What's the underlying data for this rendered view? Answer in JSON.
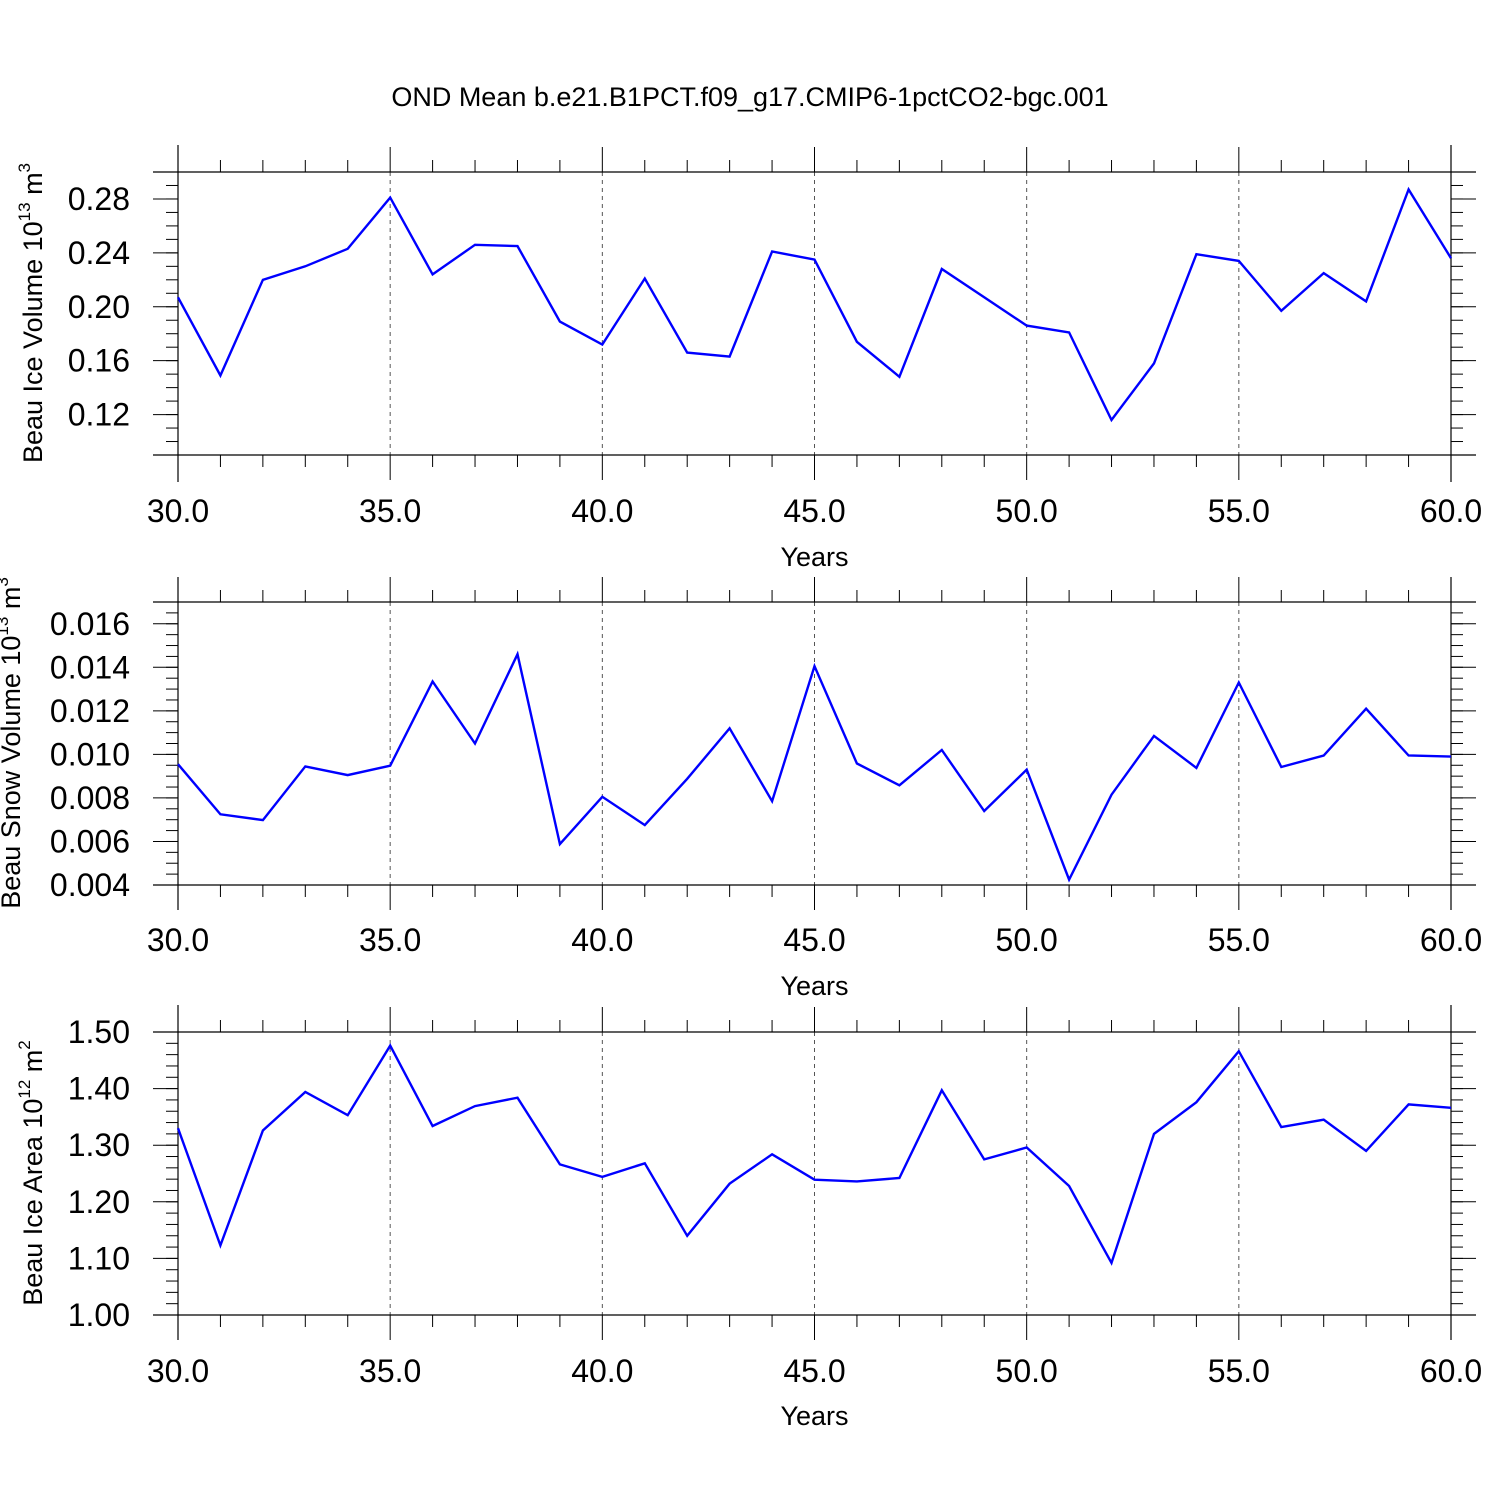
{
  "title": "OND Mean b.e21.B1PCT.f09_g17.CMIP6-1pctCO2-bgc.001",
  "chart_data": [
    {
      "type": "line",
      "ylabel": "Beau Ice Volume 10",
      "ylabel_exp": "13",
      "ylabel_unit": " m",
      "ylabel_unit_exp": "3",
      "xlabel": "Years",
      "xlim": [
        30,
        60
      ],
      "ylim": [
        0.09,
        0.3
      ],
      "xticks": [
        30,
        35,
        40,
        45,
        50,
        55,
        60
      ],
      "xtick_labels": [
        "30.0",
        "35.0",
        "40.0",
        "45.0",
        "50.0",
        "55.0",
        "60.0"
      ],
      "yticks": [
        0.12,
        0.16,
        0.2,
        0.24,
        0.28
      ],
      "ytick_labels": [
        "0.12",
        "0.16",
        "0.20",
        "0.24",
        "0.28"
      ],
      "yminor_step": 0.01,
      "grid": "vertical dashed",
      "line_color": "#0000ff",
      "x": [
        30,
        31,
        32,
        33,
        34,
        35,
        36,
        37,
        38,
        39,
        40,
        41,
        42,
        43,
        44,
        45,
        46,
        47,
        48,
        49,
        50,
        51,
        52,
        53,
        54,
        55,
        56,
        57,
        58,
        59,
        60
      ],
      "values": [
        0.207,
        0.149,
        0.22,
        0.23,
        0.243,
        0.281,
        0.224,
        0.246,
        0.245,
        0.189,
        0.172,
        0.221,
        0.166,
        0.163,
        0.241,
        0.235,
        0.174,
        0.148,
        0.228,
        0.207,
        0.186,
        0.181,
        0.116,
        0.158,
        0.239,
        0.234,
        0.197,
        0.225,
        0.204,
        0.287,
        0.236
      ]
    },
    {
      "type": "line",
      "ylabel": "Beau Snow Volume 10",
      "ylabel_exp": "13",
      "ylabel_unit": " m",
      "ylabel_unit_exp": "3",
      "xlabel": "Years",
      "xlim": [
        30,
        60
      ],
      "ylim": [
        0.004,
        0.017
      ],
      "xticks": [
        30,
        35,
        40,
        45,
        50,
        55,
        60
      ],
      "xtick_labels": [
        "30.0",
        "35.0",
        "40.0",
        "45.0",
        "50.0",
        "55.0",
        "60.0"
      ],
      "yticks": [
        0.004,
        0.006,
        0.008,
        0.01,
        0.012,
        0.014,
        0.016
      ],
      "ytick_labels": [
        "0.004",
        "0.006",
        "0.008",
        "0.010",
        "0.012",
        "0.014",
        "0.016"
      ],
      "yminor_step": 0.0005,
      "grid": "vertical dashed",
      "line_color": "#0000ff",
      "x": [
        30,
        31,
        32,
        33,
        34,
        35,
        36,
        37,
        38,
        39,
        40,
        41,
        42,
        43,
        44,
        45,
        46,
        47,
        48,
        49,
        50,
        51,
        52,
        53,
        54,
        55,
        56,
        57,
        58,
        59,
        60
      ],
      "values": [
        0.00955,
        0.00725,
        0.00698,
        0.00945,
        0.00905,
        0.00948,
        0.01335,
        0.0105,
        0.0146,
        0.00588,
        0.00805,
        0.00675,
        0.00888,
        0.0112,
        0.00785,
        0.01405,
        0.00958,
        0.00858,
        0.0102,
        0.0074,
        0.0093,
        0.00425,
        0.00815,
        0.01085,
        0.00938,
        0.0133,
        0.00942,
        0.00995,
        0.0121,
        0.00995,
        0.0099
      ]
    },
    {
      "type": "line",
      "ylabel": "Beau Ice Area 10",
      "ylabel_exp": "12",
      "ylabel_unit": " m",
      "ylabel_unit_exp": "2",
      "xlabel": "Years",
      "xlim": [
        30,
        60
      ],
      "ylim": [
        1.0,
        1.5
      ],
      "xticks": [
        30,
        35,
        40,
        45,
        50,
        55,
        60
      ],
      "xtick_labels": [
        "30.0",
        "35.0",
        "40.0",
        "45.0",
        "50.0",
        "55.0",
        "60.0"
      ],
      "yticks": [
        1.0,
        1.1,
        1.2,
        1.3,
        1.4,
        1.5
      ],
      "ytick_labels": [
        "1.00",
        "1.10",
        "1.20",
        "1.30",
        "1.40",
        "1.50"
      ],
      "yminor_step": 0.02,
      "grid": "vertical dashed",
      "line_color": "#0000ff",
      "x": [
        30,
        31,
        32,
        33,
        34,
        35,
        36,
        37,
        38,
        39,
        40,
        41,
        42,
        43,
        44,
        45,
        46,
        47,
        48,
        49,
        50,
        51,
        52,
        53,
        54,
        55,
        56,
        57,
        58,
        59,
        60
      ],
      "values": [
        1.33,
        1.123,
        1.326,
        1.394,
        1.353,
        1.476,
        1.334,
        1.369,
        1.384,
        1.266,
        1.244,
        1.268,
        1.14,
        1.232,
        1.284,
        1.239,
        1.236,
        1.242,
        1.397,
        1.275,
        1.296,
        1.228,
        1.092,
        1.32,
        1.376,
        1.466,
        1.332,
        1.345,
        1.29,
        1.372,
        1.366
      ]
    }
  ]
}
